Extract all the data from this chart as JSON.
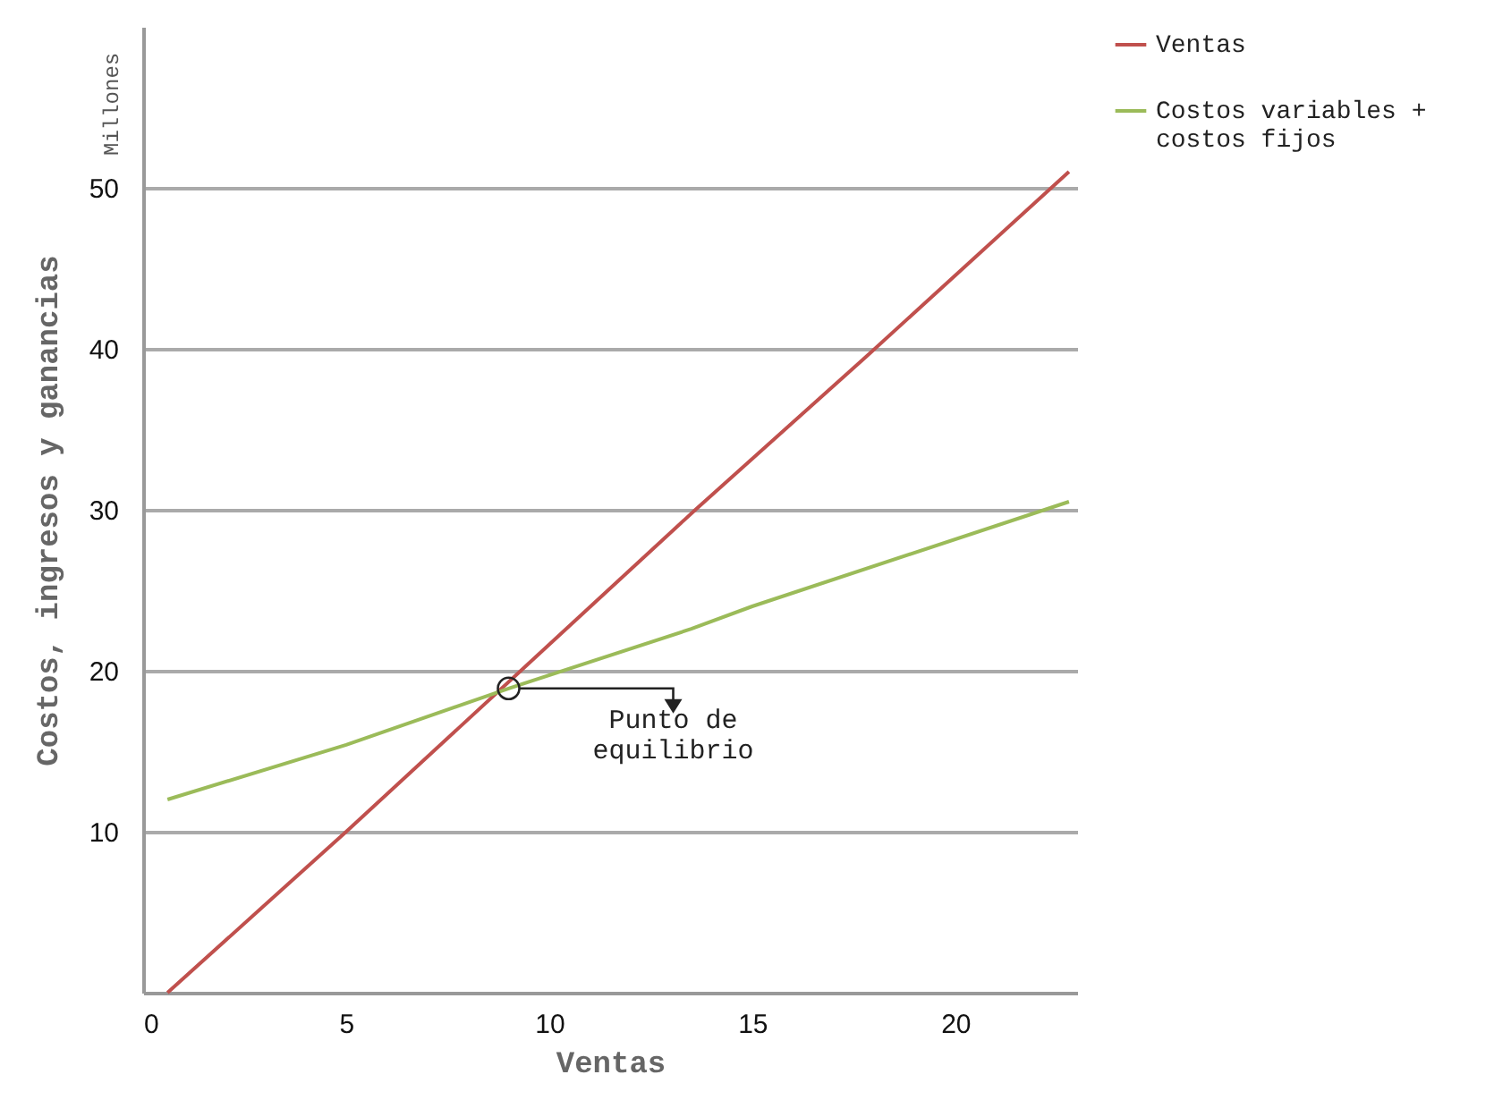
{
  "chart_data": {
    "type": "line",
    "xlabel": "Ventas",
    "ylabel": "Costos, ingresos y ganancias",
    "annotations": [
      "Millones",
      {
        "text": "Punto de equilibrio",
        "x": 9,
        "y": 18.9
      }
    ],
    "xlim": [
      0,
      23
    ],
    "xticks": [
      0,
      5,
      10,
      15,
      20
    ],
    "ylim": [
      0,
      60
    ],
    "yticks": [
      {
        "value": 0,
        "label": null
      },
      10,
      20,
      30,
      40,
      50
    ],
    "grid": "y",
    "legend": "right",
    "marker": "none",
    "line_style": "solid",
    "series": [
      {
        "name": "Ventas",
        "color": "#c0504d",
        "x": [
          0.6,
          5,
          9.3,
          13.6,
          17.8,
          22.8
        ],
        "values": [
          0,
          10,
          20,
          30,
          39.5,
          51
        ]
      },
      {
        "name": "Costos variables + costos fijos",
        "color": "#9bbb59",
        "x": [
          0.6,
          5,
          9,
          13.5,
          15,
          22.8
        ],
        "values": [
          12,
          15.4,
          18.9,
          22.6,
          24,
          30.5
        ]
      }
    ]
  }
}
